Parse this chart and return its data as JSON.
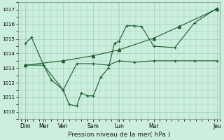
{
  "background_color": "#cceedd",
  "grid_color": "#99ccbb",
  "line_color": "#1a5c2a",
  "xlabel": "Pression niveau de la mer( hPa )",
  "ylim": [
    1009.5,
    1017.5
  ],
  "yticks": [
    1010,
    1011,
    1012,
    1013,
    1014,
    1015,
    1016,
    1017
  ],
  "xlim": [
    -0.2,
    13.2
  ],
  "xtick_positions": [
    0.3,
    1.5,
    2.8,
    4.8,
    6.5,
    8.8,
    13.0
  ],
  "xtick_labels": [
    "Dim",
    "Mer",
    "Ven",
    "Sam",
    "Lun",
    "Mar",
    "Jeu"
  ],
  "series1_x": [
    0.3,
    0.7,
    1.5,
    2.0,
    2.8,
    3.2,
    3.7,
    4.0,
    4.4,
    4.8,
    5.3,
    5.8,
    6.2,
    6.5,
    7.0,
    7.5,
    8.0,
    8.8,
    10.2,
    11.5,
    13.0
  ],
  "series1_y": [
    1014.7,
    1015.1,
    1013.2,
    1012.2,
    1011.5,
    1010.5,
    1010.4,
    1011.3,
    1011.1,
    1011.1,
    1012.4,
    1013.0,
    1014.7,
    1014.85,
    1015.9,
    1015.9,
    1015.85,
    1014.5,
    1014.4,
    1016.1,
    1017.1
  ],
  "series2_x": [
    0.3,
    1.5,
    2.8,
    3.7,
    4.8,
    5.8,
    6.5,
    7.5,
    8.8,
    10.2,
    11.5,
    13.0
  ],
  "series2_y": [
    1013.2,
    1013.2,
    1011.5,
    1013.3,
    1013.3,
    1013.2,
    1013.5,
    1013.4,
    1013.5,
    1013.5,
    1013.5,
    1013.5
  ],
  "series3_x": [
    0.3,
    2.8,
    4.8,
    6.5,
    8.8,
    10.5,
    13.0
  ],
  "series3_y": [
    1013.2,
    1013.5,
    1013.85,
    1014.25,
    1015.05,
    1015.85,
    1017.05
  ]
}
